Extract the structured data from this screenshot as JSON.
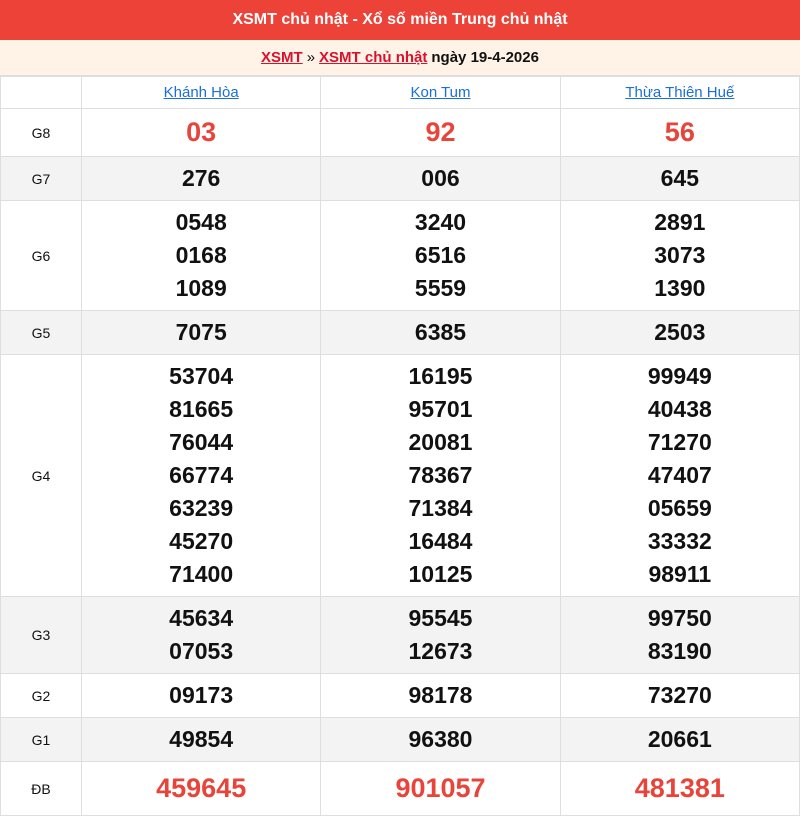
{
  "header": {
    "title": "XSMT chủ nhật - Xổ số miền Trung chủ nhật"
  },
  "breadcrumb": {
    "link1": "XSMT",
    "separator": "»",
    "link2": "XSMT chủ nhật",
    "date_text": "ngày 19-4-2026"
  },
  "colors": {
    "header_bg": "#ec4237",
    "highlight": "#e8443a",
    "link": "#1a6fd8"
  },
  "provinces": [
    "Khánh Hòa",
    "Kon Tum",
    "Thừa Thiên Huế"
  ],
  "prizes": [
    {
      "label": "G8",
      "red": true,
      "values": [
        [
          "03"
        ],
        [
          "92"
        ],
        [
          "56"
        ]
      ]
    },
    {
      "label": "G7",
      "values": [
        [
          "276"
        ],
        [
          "006"
        ],
        [
          "645"
        ]
      ]
    },
    {
      "label": "G6",
      "values": [
        [
          "0548",
          "0168",
          "1089"
        ],
        [
          "3240",
          "6516",
          "5559"
        ],
        [
          "2891",
          "3073",
          "1390"
        ]
      ]
    },
    {
      "label": "G5",
      "values": [
        [
          "7075"
        ],
        [
          "6385"
        ],
        [
          "2503"
        ]
      ]
    },
    {
      "label": "G4",
      "values": [
        [
          "53704",
          "81665",
          "76044",
          "66774",
          "63239",
          "45270",
          "71400"
        ],
        [
          "16195",
          "95701",
          "20081",
          "78367",
          "71384",
          "16484",
          "10125"
        ],
        [
          "99949",
          "40438",
          "71270",
          "47407",
          "05659",
          "33332",
          "98911"
        ]
      ]
    },
    {
      "label": "G3",
      "values": [
        [
          "45634",
          "07053"
        ],
        [
          "95545",
          "12673"
        ],
        [
          "99750",
          "83190"
        ]
      ]
    },
    {
      "label": "G2",
      "values": [
        [
          "09173"
        ],
        [
          "98178"
        ],
        [
          "73270"
        ]
      ]
    },
    {
      "label": "G1",
      "values": [
        [
          "49854"
        ],
        [
          "96380"
        ],
        [
          "20661"
        ]
      ]
    },
    {
      "label": "ĐB",
      "red": true,
      "values": [
        [
          "459645"
        ],
        [
          "901057"
        ],
        [
          "481381"
        ]
      ]
    }
  ]
}
